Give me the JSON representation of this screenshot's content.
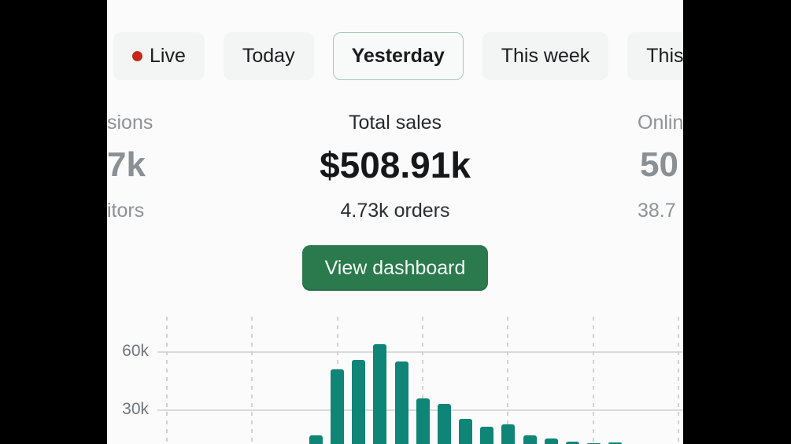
{
  "tabs": {
    "items": [
      {
        "label": "Live",
        "live_dot": true,
        "selected": false
      },
      {
        "label": "Today",
        "live_dot": false,
        "selected": false
      },
      {
        "label": "Yesterday",
        "live_dot": false,
        "selected": true
      },
      {
        "label": "This week",
        "live_dot": false,
        "selected": false
      },
      {
        "label": "This",
        "live_dot": false,
        "selected": false,
        "clipped": true
      }
    ],
    "live_dot_color": "#c7281c",
    "selected_border_color": "#a7c6b5"
  },
  "stats": {
    "left_partial": {
      "label": "sions",
      "value": "7k",
      "sub": "itors"
    },
    "center": {
      "label": "Total sales",
      "value": "$508.91k",
      "sub": "4.73k orders"
    },
    "right_partial": {
      "label": "Onlin",
      "value": "50",
      "sub": "38.7"
    }
  },
  "cta": {
    "label": "View dashboard",
    "background": "#2b7a4d"
  },
  "chart_data": {
    "type": "bar",
    "y_ticks": [
      {
        "label": "60k",
        "value": 60000
      },
      {
        "label": "30k",
        "value": 30000
      }
    ],
    "values": [
      17500,
      51500,
      56500,
      64500,
      55500,
      36500,
      33500,
      26000,
      22000,
      23000,
      17500,
      16000,
      14200,
      13200,
      13600
    ],
    "x_labels_visible": false,
    "baseline_offscreen": true,
    "bar_color": "#0f8577",
    "grid": {
      "horizontal": "solid",
      "vertical": "dashed"
    },
    "legend": "none",
    "note": "bar bottoms are clipped by the lower edge of the viewport; 0k baseline lies below the visible area"
  },
  "colors": {
    "background": "#fbfbfb",
    "letterbox": "#000000",
    "primary_text": "#151719",
    "muted_text": "#8e9398",
    "accent_green": "#2b7a4d",
    "bar_teal": "#0f8577",
    "live_red": "#c7281c"
  }
}
